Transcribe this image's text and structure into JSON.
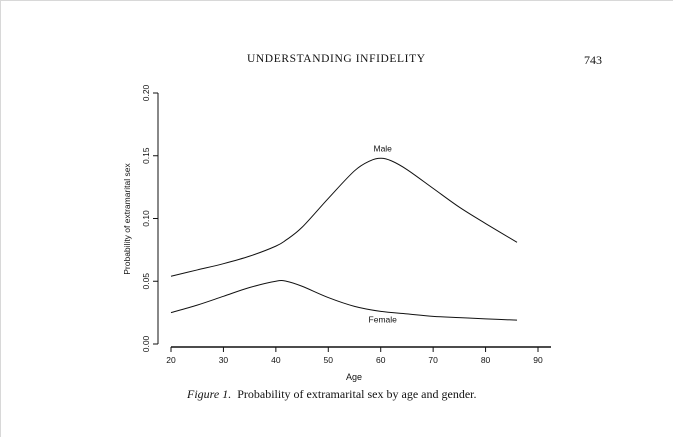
{
  "header": {
    "running_title": "UNDERSTANDING INFIDELITY",
    "page_number": "743"
  },
  "caption": {
    "label": "Figure 1.",
    "text": "Probability of extramarital sex by age and gender."
  },
  "chart_data": {
    "type": "line",
    "title": "",
    "xlabel": "Age",
    "ylabel": "Probability of extramarital sex",
    "xlim": [
      20,
      90
    ],
    "ylim": [
      0,
      0.2
    ],
    "xticks": [
      "20",
      "30",
      "40",
      "50",
      "60",
      "70",
      "80",
      "90"
    ],
    "yticks": [
      "0.00",
      "0.05",
      "0.10",
      "0.15",
      "0.20"
    ],
    "grid": false,
    "series": [
      {
        "name": "Male",
        "x": [
          20,
          25,
          30,
          35,
          40,
          42,
          45,
          50,
          55,
          58,
          60,
          62,
          65,
          70,
          75,
          80,
          86
        ],
        "y": [
          0.054,
          0.059,
          0.064,
          0.07,
          0.078,
          0.083,
          0.093,
          0.116,
          0.138,
          0.146,
          0.148,
          0.146,
          0.139,
          0.124,
          0.109,
          0.096,
          0.081
        ],
        "color": "#111111"
      },
      {
        "name": "Female",
        "x": [
          20,
          25,
          30,
          35,
          40,
          42,
          45,
          50,
          55,
          60,
          65,
          70,
          75,
          80,
          86
        ],
        "y": [
          0.025,
          0.031,
          0.038,
          0.045,
          0.05,
          0.05,
          0.046,
          0.037,
          0.03,
          0.026,
          0.024,
          0.022,
          0.021,
          0.02,
          0.019
        ],
        "color": "#111111"
      }
    ]
  }
}
